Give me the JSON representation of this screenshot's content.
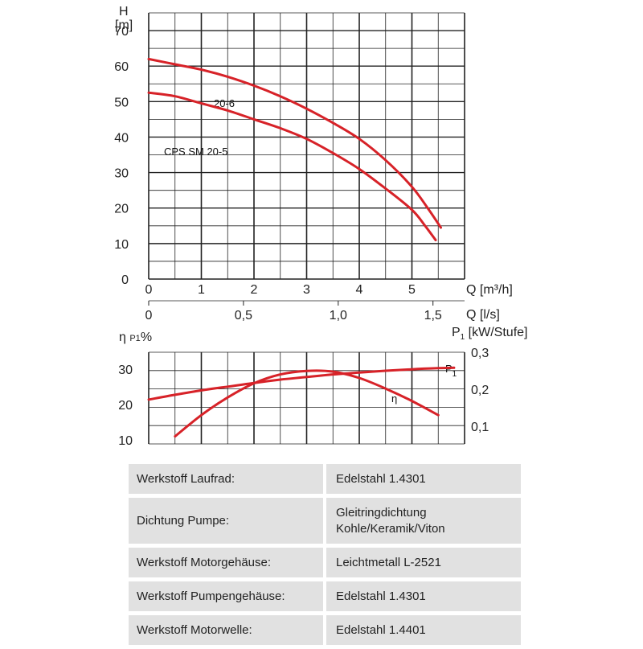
{
  "chart_data": [
    {
      "type": "line",
      "ylabel_line1": "H",
      "ylabel_line2": "[m]",
      "xlabel_primary": "Q [m³/h]",
      "xlabel_secondary": "Q [l/s]",
      "xlim": [
        0,
        6
      ],
      "ylim": [
        0,
        75
      ],
      "x_ticks": [
        "0",
        "1",
        "2",
        "3",
        "4",
        "5"
      ],
      "x_ticks_secondary": [
        "0",
        "0,5",
        "1,0",
        "1,5"
      ],
      "x_ticks_secondary_values": [
        0,
        0.5,
        1.0,
        1.5
      ],
      "y_ticks": [
        "0",
        "10",
        "20",
        "30",
        "40",
        "50",
        "60",
        "70"
      ],
      "grid": true,
      "series": [
        {
          "name": "20-6",
          "color": "#d72228",
          "x": [
            0,
            0.5,
            1,
            1.5,
            2,
            2.5,
            3,
            3.5,
            4,
            4.5,
            5,
            5.3,
            5.55
          ],
          "y": [
            62,
            60.5,
            59,
            57,
            54.5,
            51.5,
            48,
            44,
            39.5,
            33.5,
            26,
            20,
            14.5
          ]
        },
        {
          "name": "CPS SM 20-5",
          "color": "#d72228",
          "x": [
            0,
            0.5,
            1,
            1.5,
            2,
            2.5,
            3,
            3.5,
            4,
            4.5,
            5,
            5.25,
            5.45
          ],
          "y": [
            52.5,
            51.5,
            49.5,
            47.5,
            45,
            42.5,
            39.5,
            35.5,
            31,
            25.5,
            19.5,
            15,
            11
          ]
        }
      ]
    },
    {
      "type": "line",
      "ylabel_left": "η P1%",
      "ylabel_right": "P1 [kW/Stufe]",
      "y_ticks_left": [
        "10",
        "20",
        "30"
      ],
      "y_ticks_right": [
        "0,1",
        "0,2",
        "0,3"
      ],
      "ylim_left": [
        10,
        32
      ],
      "ylim_right": [
        0.08,
        0.32
      ],
      "grid": true,
      "series": [
        {
          "name": "P1",
          "axis": "right",
          "color": "#d72228",
          "x": [
            0,
            0.5,
            1,
            1.5,
            2,
            2.5,
            3,
            3.5,
            4,
            4.5,
            5,
            5.5,
            5.8
          ],
          "y": [
            0.172,
            0.185,
            0.197,
            0.207,
            0.217,
            0.226,
            0.233,
            0.24,
            0.245,
            0.25,
            0.254,
            0.257,
            0.258
          ]
        },
        {
          "name": "η",
          "axis": "left",
          "color": "#d72228",
          "x": [
            0.5,
            1,
            1.5,
            2,
            2.5,
            3,
            3.5,
            4,
            4.5,
            5,
            5.5
          ],
          "y": [
            11,
            17,
            22,
            26,
            28.5,
            29.5,
            29.3,
            27.5,
            24.5,
            21,
            17
          ]
        }
      ]
    }
  ],
  "specs": [
    {
      "key": "Werkstoff Laufrad:",
      "value": "Edelstahl 1.4301"
    },
    {
      "key": "Dichtung Pumpe:",
      "value": "Gleitringdichtung Kohle/Keramik/Viton"
    },
    {
      "key": "Werkstoff Motorgehäuse:",
      "value": "Leichtmetall L-2521"
    },
    {
      "key": "Werkstoff Pumpengehäuse:",
      "value": "Edelstahl 1.4301"
    },
    {
      "key": "Werkstoff Motorwelle:",
      "value": "Edelstahl 1.4401"
    }
  ]
}
